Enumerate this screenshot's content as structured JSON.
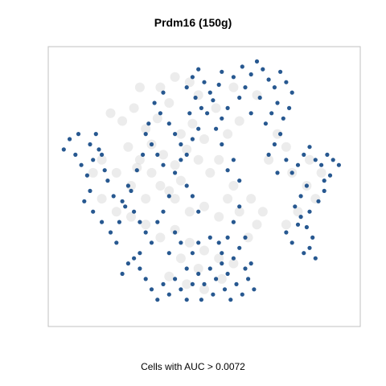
{
  "chart_data": {
    "type": "scatter",
    "title": "Prdm16 (150g)",
    "caption": "Cells with AUC > 0.0072",
    "xlabel": "",
    "ylabel": "",
    "xlim": [
      0,
      100
    ],
    "ylim": [
      0,
      100
    ],
    "grid": false,
    "colors": {
      "background_cells": "#dcdcdc",
      "high_auc_cells": "#1b4f8a",
      "frame": "#c0c0c0"
    },
    "series": [
      {
        "role": "background",
        "points": [
          [
            18,
            78
          ],
          [
            22,
            75
          ],
          [
            26,
            80
          ],
          [
            30,
            72
          ],
          [
            34,
            76
          ],
          [
            38,
            82
          ],
          [
            42,
            70
          ],
          [
            46,
            74
          ],
          [
            50,
            68
          ],
          [
            24,
            65
          ],
          [
            28,
            60
          ],
          [
            32,
            66
          ],
          [
            36,
            62
          ],
          [
            40,
            58
          ],
          [
            44,
            64
          ],
          [
            48,
            60
          ],
          [
            52,
            55
          ],
          [
            20,
            55
          ],
          [
            25,
            50
          ],
          [
            30,
            45
          ],
          [
            35,
            50
          ],
          [
            40,
            45
          ],
          [
            45,
            40
          ],
          [
            50,
            42
          ],
          [
            55,
            38
          ],
          [
            58,
            45
          ],
          [
            60,
            50
          ],
          [
            62,
            40
          ],
          [
            25,
            38
          ],
          [
            30,
            35
          ],
          [
            35,
            30
          ],
          [
            40,
            33
          ],
          [
            45,
            28
          ],
          [
            50,
            25
          ],
          [
            55,
            22
          ],
          [
            48,
            18
          ],
          [
            42,
            22
          ],
          [
            38,
            15
          ],
          [
            44,
            12
          ],
          [
            50,
            10
          ],
          [
            56,
            14
          ],
          [
            60,
            20
          ],
          [
            65,
            30
          ],
          [
            68,
            35
          ],
          [
            66,
            45
          ],
          [
            70,
            40
          ],
          [
            15,
            60
          ],
          [
            12,
            55
          ],
          [
            15,
            45
          ],
          [
            20,
            40
          ],
          [
            55,
            60
          ],
          [
            58,
            70
          ],
          [
            62,
            75
          ],
          [
            54,
            80
          ],
          [
            48,
            85
          ],
          [
            45,
            90
          ],
          [
            60,
            88
          ],
          [
            68,
            85
          ],
          [
            72,
            60
          ],
          [
            75,
            70
          ],
          [
            78,
            65
          ],
          [
            80,
            55
          ],
          [
            85,
            50
          ],
          [
            88,
            45
          ],
          [
            82,
            40
          ],
          [
            78,
            35
          ],
          [
            86,
            60
          ],
          [
            90,
            55
          ],
          [
            35,
            88
          ],
          [
            40,
            92
          ],
          [
            28,
            88
          ],
          [
            32,
            55
          ],
          [
            27,
            57
          ],
          [
            38,
            48
          ],
          [
            42,
            52
          ]
        ]
      },
      {
        "role": "high_auc",
        "points": [
          [
            44,
            88
          ],
          [
            46,
            92
          ],
          [
            48,
            95
          ],
          [
            50,
            90
          ],
          [
            52,
            86
          ],
          [
            47,
            84
          ],
          [
            49,
            80
          ],
          [
            51,
            78
          ],
          [
            45,
            78
          ],
          [
            53,
            83
          ],
          [
            55,
            89
          ],
          [
            56,
            94
          ],
          [
            60,
            92
          ],
          [
            63,
            96
          ],
          [
            66,
            93
          ],
          [
            68,
            98
          ],
          [
            70,
            95
          ],
          [
            72,
            91
          ],
          [
            74,
            88
          ],
          [
            76,
            94
          ],
          [
            78,
            90
          ],
          [
            80,
            86
          ],
          [
            75,
            82
          ],
          [
            73,
            78
          ],
          [
            71,
            74
          ],
          [
            77,
            76
          ],
          [
            79,
            80
          ],
          [
            69,
            84
          ],
          [
            64,
            88
          ],
          [
            62,
            84
          ],
          [
            58,
            80
          ],
          [
            66,
            78
          ],
          [
            78,
            60
          ],
          [
            80,
            55
          ],
          [
            82,
            58
          ],
          [
            84,
            62
          ],
          [
            86,
            65
          ],
          [
            88,
            60
          ],
          [
            90,
            58
          ],
          [
            92,
            62
          ],
          [
            94,
            60
          ],
          [
            96,
            58
          ],
          [
            93,
            54
          ],
          [
            91,
            52
          ],
          [
            85,
            50
          ],
          [
            83,
            46
          ],
          [
            81,
            42
          ],
          [
            83,
            38
          ],
          [
            85,
            34
          ],
          [
            87,
            30
          ],
          [
            86,
            26
          ],
          [
            88,
            22
          ],
          [
            84,
            24
          ],
          [
            80,
            28
          ],
          [
            78,
            32
          ],
          [
            82,
            35
          ],
          [
            86,
            40
          ],
          [
            89,
            44
          ],
          [
            91,
            48
          ],
          [
            75,
            55
          ],
          [
            72,
            62
          ],
          [
            74,
            66
          ],
          [
            76,
            70
          ],
          [
            2,
            64
          ],
          [
            4,
            68
          ],
          [
            6,
            62
          ],
          [
            8,
            58
          ],
          [
            10,
            54
          ],
          [
            12,
            60
          ],
          [
            14,
            64
          ],
          [
            16,
            56
          ],
          [
            11,
            48
          ],
          [
            9,
            44
          ],
          [
            12,
            40
          ],
          [
            15,
            36
          ],
          [
            18,
            32
          ],
          [
            20,
            28
          ],
          [
            22,
            44
          ],
          [
            24,
            50
          ],
          [
            26,
            40
          ],
          [
            28,
            36
          ],
          [
            30,
            32
          ],
          [
            32,
            28
          ],
          [
            24,
            20
          ],
          [
            22,
            16
          ],
          [
            28,
            24
          ],
          [
            30,
            70
          ],
          [
            32,
            66
          ],
          [
            34,
            62
          ],
          [
            36,
            58
          ],
          [
            40,
            55
          ],
          [
            42,
            60
          ],
          [
            44,
            50
          ],
          [
            46,
            46
          ],
          [
            48,
            40
          ],
          [
            38,
            46
          ],
          [
            36,
            40
          ],
          [
            34,
            36
          ],
          [
            40,
            32
          ],
          [
            42,
            28
          ],
          [
            38,
            24
          ],
          [
            26,
            22
          ],
          [
            28,
            18
          ],
          [
            30,
            14
          ],
          [
            32,
            10
          ],
          [
            34,
            6
          ],
          [
            36,
            12
          ],
          [
            38,
            8
          ],
          [
            40,
            14
          ],
          [
            42,
            10
          ],
          [
            44,
            6
          ],
          [
            46,
            12
          ],
          [
            48,
            16
          ],
          [
            50,
            12
          ],
          [
            52,
            18
          ],
          [
            54,
            14
          ],
          [
            56,
            20
          ],
          [
            58,
            16
          ],
          [
            56,
            24
          ],
          [
            60,
            22
          ],
          [
            62,
            26
          ],
          [
            64,
            30
          ],
          [
            58,
            30
          ],
          [
            60,
            36
          ],
          [
            62,
            42
          ],
          [
            55,
            28
          ],
          [
            52,
            30
          ],
          [
            48,
            28
          ],
          [
            46,
            24
          ],
          [
            44,
            18
          ],
          [
            53,
            8
          ],
          [
            49,
            6
          ],
          [
            57,
            10
          ],
          [
            59,
            6
          ],
          [
            61,
            12
          ],
          [
            63,
            8
          ],
          [
            65,
            14
          ],
          [
            67,
            10
          ],
          [
            66,
            20
          ],
          [
            64,
            18
          ],
          [
            60,
            60
          ],
          [
            58,
            56
          ],
          [
            62,
            52
          ],
          [
            56,
            66
          ],
          [
            54,
            72
          ],
          [
            56,
            76
          ],
          [
            35,
            78
          ],
          [
            33,
            82
          ],
          [
            36,
            86
          ],
          [
            38,
            74
          ],
          [
            40,
            70
          ],
          [
            42,
            66
          ],
          [
            44,
            62
          ],
          [
            46,
            68
          ],
          [
            48,
            72
          ],
          [
            31,
            74
          ],
          [
            29,
            62
          ],
          [
            27,
            56
          ],
          [
            25,
            48
          ],
          [
            23,
            42
          ],
          [
            21,
            36
          ],
          [
            19,
            46
          ],
          [
            17,
            52
          ],
          [
            15,
            62
          ],
          [
            13,
            70
          ],
          [
            11,
            66
          ],
          [
            7,
            70
          ]
        ]
      }
    ]
  }
}
